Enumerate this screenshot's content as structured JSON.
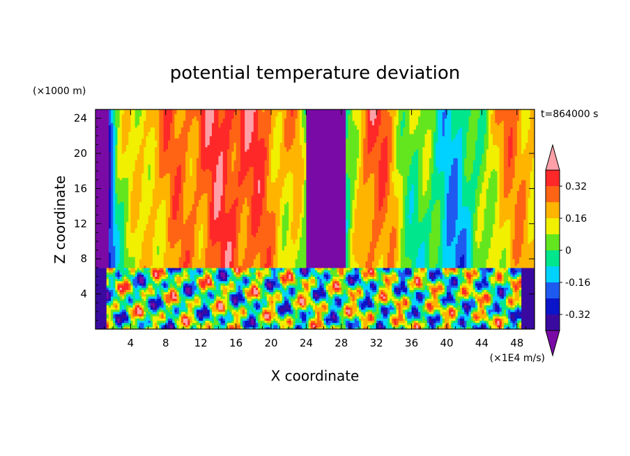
{
  "chart_data": {
    "type": "heatmap",
    "title": "potential temperature deviation",
    "time_label": "t=864000 s",
    "xlabel": "X coordinate",
    "x_unit": "(×1E4 m/s)",
    "ylabel": "Z coordinate",
    "y_unit": "(×1000 m)",
    "xlim": [
      0,
      50
    ],
    "ylim": [
      0,
      25
    ],
    "x_ticks": [
      "4",
      "8",
      "12",
      "16",
      "20",
      "24",
      "28",
      "32",
      "36",
      "40",
      "44",
      "48"
    ],
    "y_ticks": [
      "4",
      "8",
      "12",
      "16",
      "20",
      "24"
    ],
    "x_tick_values": [
      4,
      8,
      12,
      16,
      20,
      24,
      28,
      32,
      36,
      40,
      44,
      48
    ],
    "y_tick_values": [
      4,
      8,
      12,
      16,
      20,
      24
    ],
    "colorbar": {
      "labels": [
        "0.32",
        "0.16",
        "0",
        "-0.16",
        "-0.32"
      ],
      "label_levels": [
        0.32,
        0.16,
        0,
        -0.16,
        -0.32
      ],
      "levels": [
        -0.4,
        -0.32,
        -0.24,
        -0.16,
        -0.08,
        0,
        0.08,
        0.16,
        0.24,
        0.32,
        0.4
      ],
      "colors": [
        "#7a0aa6",
        "#3a0aa0",
        "#0a14c8",
        "#1e5af0",
        "#00d2ff",
        "#00e68c",
        "#64e61e",
        "#f0f000",
        "#ffb400",
        "#ff6414",
        "#ff2828",
        "#ffa0a8"
      ],
      "extend": "both"
    },
    "field_description_regions": {
      "upper_layer_z_min": 7,
      "columns": [
        {
          "x": [
            0,
            1.5
          ],
          "value": -0.42
        },
        {
          "x": [
            1.5,
            4
          ],
          "value": 0.05
        },
        {
          "x": [
            4,
            11
          ],
          "value": 0.22
        },
        {
          "x": [
            11,
            21
          ],
          "value": 0.34
        },
        {
          "x": [
            21,
            24
          ],
          "value": 0.18
        },
        {
          "x": [
            24,
            28.5
          ],
          "value": -0.42
        },
        {
          "x": [
            28.5,
            34
          ],
          "value": 0.3
        },
        {
          "x": [
            34,
            40
          ],
          "value": 0.0
        },
        {
          "x": [
            40,
            43
          ],
          "value": -0.12
        },
        {
          "x": [
            43,
            50
          ],
          "value": 0.2
        }
      ]
    }
  }
}
